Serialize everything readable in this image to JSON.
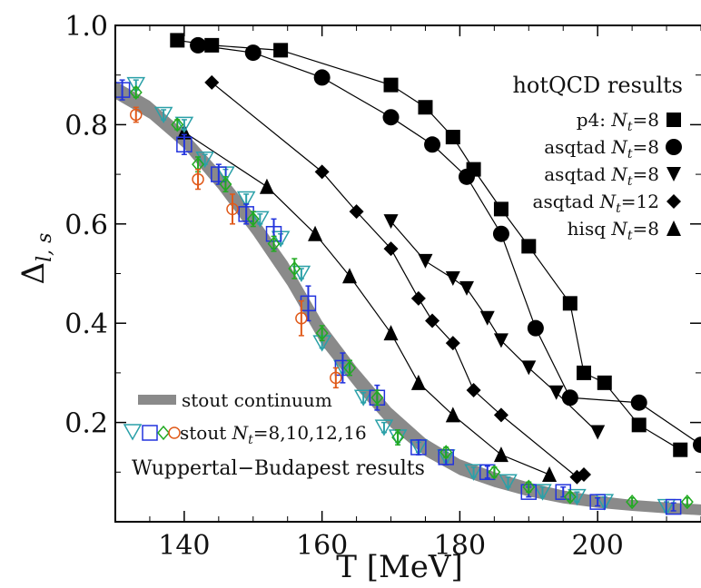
{
  "chart_data": {
    "type": "scatter",
    "xlabel": "T [MeV]",
    "ylabel_base": "Δ",
    "ylabel_sub": "l, s",
    "xlim": [
      130,
      215
    ],
    "ylim": [
      0,
      1.0
    ],
    "x_ticks": [
      140,
      160,
      180,
      200
    ],
    "y_ticks": [
      0.2,
      0.4,
      0.6,
      0.8,
      1.0
    ],
    "x_tick_labels": [
      "140",
      "160",
      "180",
      "200"
    ],
    "y_tick_labels": [
      "0.2",
      "0.4",
      "0.6",
      "0.8",
      "1.0"
    ],
    "legend_hotqcd": {
      "title": "hotQCD results",
      "entries": [
        {
          "prefix": "p4: ",
          "nt": "N",
          "sub": "t",
          "suffix": "=8",
          "marker": "square"
        },
        {
          "prefix": "asqtad ",
          "nt": "N",
          "sub": "t",
          "suffix": "=8",
          "marker": "circle"
        },
        {
          "prefix": "asqtad ",
          "nt": "N",
          "sub": "t",
          "suffix": "=8",
          "marker": "triangle-down"
        },
        {
          "prefix": "asqtad ",
          "nt": "N",
          "sub": "t",
          "suffix": "=12",
          "marker": "diamond"
        },
        {
          "prefix": "hisq ",
          "nt": "N",
          "sub": "t",
          "suffix": "=8",
          "marker": "triangle-up"
        }
      ]
    },
    "legend_wb": {
      "continuum_label": "stout continuum",
      "stout_prefix": "stout ",
      "stout_nt": "N",
      "stout_sub": "t",
      "stout_suffix": "=8,10,12,16",
      "group_label": "Wuppertal−Budapest results"
    },
    "colors": {
      "black": "#000000",
      "band": "#8a8a8a",
      "nt8": "#2aa0a8",
      "nt10": "#2233dd",
      "nt12": "#22aa22",
      "nt16": "#e05a1a"
    },
    "continuum_band": {
      "x": [
        130,
        135,
        140,
        145,
        150,
        155,
        160,
        165,
        170,
        175,
        180,
        185,
        190,
        195,
        200,
        205,
        210,
        215
      ],
      "y": [
        0.87,
        0.83,
        0.77,
        0.69,
        0.6,
        0.5,
        0.38,
        0.29,
        0.21,
        0.15,
        0.11,
        0.085,
        0.065,
        0.05,
        0.04,
        0.033,
        0.028,
        0.024
      ],
      "halfwidth": [
        0.018,
        0.018,
        0.018,
        0.02,
        0.022,
        0.024,
        0.024,
        0.022,
        0.02,
        0.018,
        0.016,
        0.015,
        0.014,
        0.013,
        0.012,
        0.011,
        0.011,
        0.011
      ]
    },
    "series": [
      {
        "marker": "square",
        "x": [
          139,
          144,
          154,
          170,
          175,
          179,
          182,
          186,
          190,
          196,
          198,
          201,
          206,
          212
        ],
        "y": [
          0.97,
          0.96,
          0.95,
          0.88,
          0.835,
          0.775,
          0.71,
          0.63,
          0.555,
          0.44,
          0.3,
          0.28,
          0.195,
          0.145
        ]
      },
      {
        "marker": "circle",
        "x": [
          142,
          150,
          160,
          170,
          176,
          181,
          186,
          191,
          196,
          206,
          215
        ],
        "y": [
          0.96,
          0.945,
          0.895,
          0.815,
          0.76,
          0.695,
          0.58,
          0.39,
          0.25,
          0.24,
          0.155
        ]
      },
      {
        "marker": "triangle-down",
        "x": [
          170,
          175,
          179,
          181,
          184,
          186,
          190,
          194,
          200
        ],
        "y": [
          0.605,
          0.525,
          0.49,
          0.47,
          0.41,
          0.365,
          0.31,
          0.26,
          0.18
        ]
      },
      {
        "marker": "diamond",
        "x": [
          144,
          160,
          165,
          170,
          174,
          176,
          179,
          182,
          186,
          197,
          198
        ],
        "y": [
          0.885,
          0.705,
          0.625,
          0.55,
          0.45,
          0.405,
          0.36,
          0.265,
          0.215,
          0.09,
          0.095
        ]
      },
      {
        "marker": "triangle-up",
        "x": [
          140,
          152,
          159,
          164,
          170,
          174,
          179,
          186,
          193
        ],
        "y": [
          0.785,
          0.675,
          0.58,
          0.495,
          0.38,
          0.28,
          0.215,
          0.135,
          0.095
        ]
      }
    ],
    "wb_series": [
      {
        "key": "nt8",
        "marker": "triangle-down-open",
        "x": [
          133,
          137,
          140,
          143,
          146,
          149,
          151,
          154,
          157,
          160,
          163,
          166,
          169,
          171,
          174,
          178,
          182,
          187,
          192,
          197,
          201,
          210
        ],
        "y": [
          0.88,
          0.82,
          0.8,
          0.73,
          0.7,
          0.65,
          0.61,
          0.57,
          0.5,
          0.36,
          0.31,
          0.25,
          0.19,
          0.17,
          0.15,
          0.13,
          0.1,
          0.08,
          0.06,
          0.05,
          0.04,
          0.03
        ],
        "err": [
          0.01,
          0.01,
          0.01,
          0.01,
          0.01,
          0.01,
          0.01,
          0.01,
          0.01,
          0.01,
          0.01,
          0.01,
          0.01,
          0.01,
          0.01,
          0.01,
          0.01,
          0.01,
          0.01,
          0.01,
          0.01,
          0.01
        ]
      },
      {
        "key": "nt10",
        "marker": "square-open",
        "x": [
          131,
          140,
          145,
          149,
          153,
          158,
          163,
          168,
          174,
          178,
          184,
          190,
          195,
          200,
          211
        ],
        "y": [
          0.87,
          0.76,
          0.7,
          0.62,
          0.58,
          0.44,
          0.31,
          0.25,
          0.15,
          0.13,
          0.1,
          0.06,
          0.06,
          0.04,
          0.03
        ],
        "err": [
          0.02,
          0.02,
          0.02,
          0.02,
          0.03,
          0.035,
          0.03,
          0.025,
          0.015,
          0.015,
          0.012,
          0.01,
          0.01,
          0.008,
          0.008
        ]
      },
      {
        "key": "nt12",
        "marker": "diamond-open",
        "x": [
          133,
          139,
          142,
          146,
          150,
          153,
          156,
          160,
          164,
          168,
          171,
          178,
          185,
          190,
          196,
          205,
          213
        ],
        "y": [
          0.865,
          0.8,
          0.72,
          0.68,
          0.61,
          0.56,
          0.51,
          0.38,
          0.31,
          0.25,
          0.17,
          0.14,
          0.1,
          0.07,
          0.05,
          0.04,
          0.04
        ],
        "err": [
          0.01,
          0.01,
          0.015,
          0.015,
          0.015,
          0.015,
          0.02,
          0.015,
          0.015,
          0.015,
          0.015,
          0.01,
          0.01,
          0.01,
          0.008,
          0.008,
          0.008
        ]
      },
      {
        "key": "nt16",
        "marker": "circle-open",
        "x": [
          133,
          142,
          147,
          157,
          162
        ],
        "y": [
          0.82,
          0.69,
          0.63,
          0.41,
          0.29
        ],
        "err": [
          0.015,
          0.02,
          0.03,
          0.035,
          0.02
        ]
      }
    ]
  }
}
